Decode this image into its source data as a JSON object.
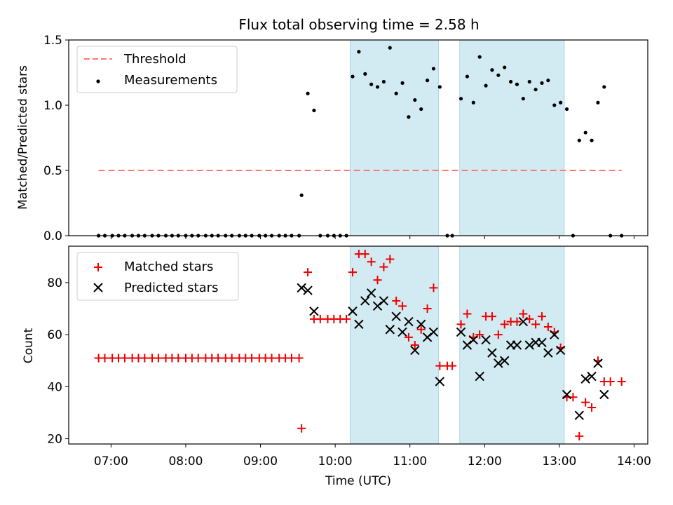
{
  "title": "Flux total observing time = 2.58 h",
  "colors": {
    "threshold": "#ff7777",
    "matched": "#ee0000",
    "predicted": "#000000",
    "band": "#add8e6"
  },
  "chart_data": [
    {
      "type": "scatter",
      "ylabel": "Matched/Predicted stars",
      "ylim": [
        0,
        1.5
      ],
      "yticks": [
        "0.0",
        "0.5",
        "1.0",
        "1.5"
      ],
      "legend": {
        "placement": "top-left",
        "entries": [
          "Threshold",
          "Measurements"
        ]
      },
      "threshold": {
        "name": "Threshold",
        "value": 0.5,
        "x_range": [
          "06:50",
          "13:50"
        ]
      },
      "shaded_bands": [
        [
          "10:12",
          "11:23"
        ],
        [
          "11:40",
          "13:04"
        ]
      ],
      "series": [
        {
          "name": "Measurements",
          "points": [
            [
              "06:50",
              0
            ],
            [
              "06:55",
              0
            ],
            [
              "07:01",
              0
            ],
            [
              "07:06",
              0
            ],
            [
              "07:11",
              0
            ],
            [
              "07:17",
              0
            ],
            [
              "07:22",
              0
            ],
            [
              "07:27",
              0
            ],
            [
              "07:33",
              0
            ],
            [
              "07:38",
              0
            ],
            [
              "07:44",
              0
            ],
            [
              "07:49",
              0
            ],
            [
              "07:54",
              0
            ],
            [
              "08:00",
              0
            ],
            [
              "08:05",
              0
            ],
            [
              "08:10",
              0
            ],
            [
              "08:16",
              0
            ],
            [
              "08:21",
              0
            ],
            [
              "08:26",
              0
            ],
            [
              "08:32",
              0
            ],
            [
              "08:37",
              0
            ],
            [
              "08:43",
              0
            ],
            [
              "08:48",
              0
            ],
            [
              "08:53",
              0
            ],
            [
              "08:59",
              0
            ],
            [
              "09:04",
              0
            ],
            [
              "09:09",
              0
            ],
            [
              "09:15",
              0
            ],
            [
              "09:20",
              0
            ],
            [
              "09:25",
              0
            ],
            [
              "09:31",
              0
            ],
            [
              "09:33",
              0.31
            ],
            [
              "09:38",
              1.09
            ],
            [
              "09:43",
              0.96
            ],
            [
              "09:48",
              0
            ],
            [
              "09:54",
              0
            ],
            [
              "09:59",
              0
            ],
            [
              "10:04",
              0
            ],
            [
              "10:09",
              0
            ],
            [
              "10:14",
              1.22
            ],
            [
              "10:19",
              1.41
            ],
            [
              "10:24",
              1.24
            ],
            [
              "10:29",
              1.16
            ],
            [
              "10:34",
              1.14
            ],
            [
              "10:39",
              1.18
            ],
            [
              "10:44",
              1.44
            ],
            [
              "10:49",
              1.09
            ],
            [
              "10:54",
              1.17
            ],
            [
              "10:59",
              0.91
            ],
            [
              "11:04",
              1.04
            ],
            [
              "11:09",
              0.97
            ],
            [
              "11:14",
              1.19
            ],
            [
              "11:19",
              1.28
            ],
            [
              "11:24",
              1.14
            ],
            [
              "11:30",
              0
            ],
            [
              "11:34",
              0
            ],
            [
              "11:41",
              1.05
            ],
            [
              "11:46",
              1.22
            ],
            [
              "11:51",
              1.02
            ],
            [
              "11:56",
              1.37
            ],
            [
              "12:01",
              1.15
            ],
            [
              "12:06",
              1.27
            ],
            [
              "12:11",
              1.23
            ],
            [
              "12:16",
              1.29
            ],
            [
              "12:21",
              1.18
            ],
            [
              "12:26",
              1.16
            ],
            [
              "12:31",
              1.05
            ],
            [
              "12:36",
              1.18
            ],
            [
              "12:41",
              1.12
            ],
            [
              "12:46",
              1.17
            ],
            [
              "12:51",
              1.19
            ],
            [
              "12:56",
              1.0
            ],
            [
              "13:01",
              1.02
            ],
            [
              "13:06",
              0.97
            ],
            [
              "13:11",
              0
            ],
            [
              "13:16",
              0.73
            ],
            [
              "13:21",
              0.79
            ],
            [
              "13:26",
              0.73
            ],
            [
              "13:31",
              1.02
            ],
            [
              "13:36",
              1.14
            ],
            [
              "13:41",
              0
            ],
            [
              "13:50",
              0
            ]
          ]
        }
      ]
    },
    {
      "type": "scatter",
      "ylabel": "Count",
      "xlabel": "Time (UTC)",
      "ylim": [
        18,
        94
      ],
      "yticks": [
        "20",
        "40",
        "60",
        "80"
      ],
      "xlim": [
        "06:26",
        "14:11"
      ],
      "xticks": [
        "07:00",
        "08:00",
        "09:00",
        "10:00",
        "11:00",
        "12:00",
        "13:00",
        "14:00"
      ],
      "legend": {
        "placement": "top-left",
        "entries": [
          "Matched stars",
          "Predicted stars"
        ]
      },
      "shaded_bands": [
        [
          "10:12",
          "11:23"
        ],
        [
          "11:40",
          "13:04"
        ]
      ],
      "series": [
        {
          "name": "Matched stars",
          "marker": "plus",
          "points": [
            [
              "06:50",
              51
            ],
            [
              "06:55",
              51
            ],
            [
              "07:01",
              51
            ],
            [
              "07:06",
              51
            ],
            [
              "07:11",
              51
            ],
            [
              "07:17",
              51
            ],
            [
              "07:22",
              51
            ],
            [
              "07:27",
              51
            ],
            [
              "07:33",
              51
            ],
            [
              "07:38",
              51
            ],
            [
              "07:44",
              51
            ],
            [
              "07:49",
              51
            ],
            [
              "07:54",
              51
            ],
            [
              "08:00",
              51
            ],
            [
              "08:05",
              51
            ],
            [
              "08:10",
              51
            ],
            [
              "08:16",
              51
            ],
            [
              "08:21",
              51
            ],
            [
              "08:26",
              51
            ],
            [
              "08:32",
              51
            ],
            [
              "08:37",
              51
            ],
            [
              "08:43",
              51
            ],
            [
              "08:48",
              51
            ],
            [
              "08:53",
              51
            ],
            [
              "08:59",
              51
            ],
            [
              "09:04",
              51
            ],
            [
              "09:09",
              51
            ],
            [
              "09:15",
              51
            ],
            [
              "09:20",
              51
            ],
            [
              "09:25",
              51
            ],
            [
              "09:31",
              51
            ],
            [
              "09:33",
              24
            ],
            [
              "09:38",
              84
            ],
            [
              "09:43",
              66
            ],
            [
              "09:48",
              66
            ],
            [
              "09:54",
              66
            ],
            [
              "09:59",
              66
            ],
            [
              "10:04",
              66
            ],
            [
              "10:09",
              66
            ],
            [
              "10:14",
              84
            ],
            [
              "10:19",
              91
            ],
            [
              "10:24",
              91
            ],
            [
              "10:29",
              88
            ],
            [
              "10:34",
              81
            ],
            [
              "10:39",
              86
            ],
            [
              "10:44",
              89
            ],
            [
              "10:49",
              73
            ],
            [
              "10:54",
              71
            ],
            [
              "10:59",
              59
            ],
            [
              "11:04",
              56
            ],
            [
              "11:09",
              62
            ],
            [
              "11:14",
              70
            ],
            [
              "11:19",
              78
            ],
            [
              "11:24",
              48
            ],
            [
              "11:30",
              48
            ],
            [
              "11:34",
              48
            ],
            [
              "11:41",
              64
            ],
            [
              "11:46",
              68
            ],
            [
              "11:51",
              59
            ],
            [
              "11:56",
              60
            ],
            [
              "12:01",
              67
            ],
            [
              "12:06",
              67
            ],
            [
              "12:11",
              60
            ],
            [
              "12:16",
              64
            ],
            [
              "12:21",
              65
            ],
            [
              "12:26",
              65
            ],
            [
              "12:31",
              68
            ],
            [
              "12:36",
              66
            ],
            [
              "12:41",
              64
            ],
            [
              "12:46",
              67
            ],
            [
              "12:51",
              63
            ],
            [
              "12:56",
              61
            ],
            [
              "13:01",
              55
            ],
            [
              "13:06",
              36
            ],
            [
              "13:11",
              36
            ],
            [
              "13:16",
              21
            ],
            [
              "13:21",
              34
            ],
            [
              "13:26",
              32
            ],
            [
              "13:31",
              50
            ],
            [
              "13:36",
              42
            ],
            [
              "13:41",
              42
            ],
            [
              "13:50",
              42
            ]
          ]
        },
        {
          "name": "Predicted stars",
          "marker": "x",
          "points": [
            [
              "09:33",
              78
            ],
            [
              "09:38",
              77
            ],
            [
              "09:43",
              69
            ],
            [
              "10:14",
              69
            ],
            [
              "10:19",
              64
            ],
            [
              "10:24",
              73
            ],
            [
              "10:29",
              76
            ],
            [
              "10:34",
              71
            ],
            [
              "10:39",
              73
            ],
            [
              "10:44",
              62
            ],
            [
              "10:49",
              67
            ],
            [
              "10:54",
              61
            ],
            [
              "10:59",
              65
            ],
            [
              "11:04",
              54
            ],
            [
              "11:09",
              64
            ],
            [
              "11:14",
              59
            ],
            [
              "11:19",
              61
            ],
            [
              "11:24",
              42
            ],
            [
              "11:41",
              61
            ],
            [
              "11:46",
              56
            ],
            [
              "11:51",
              58
            ],
            [
              "11:56",
              44
            ],
            [
              "12:01",
              58
            ],
            [
              "12:06",
              53
            ],
            [
              "12:11",
              49
            ],
            [
              "12:16",
              50
            ],
            [
              "12:21",
              56
            ],
            [
              "12:26",
              56
            ],
            [
              "12:31",
              65
            ],
            [
              "12:36",
              56
            ],
            [
              "12:41",
              57
            ],
            [
              "12:46",
              57
            ],
            [
              "12:51",
              53
            ],
            [
              "12:56",
              60
            ],
            [
              "13:01",
              54
            ],
            [
              "13:06",
              37
            ],
            [
              "13:16",
              29
            ],
            [
              "13:21",
              43
            ],
            [
              "13:26",
              44
            ],
            [
              "13:31",
              49
            ],
            [
              "13:36",
              37
            ]
          ]
        }
      ]
    }
  ]
}
